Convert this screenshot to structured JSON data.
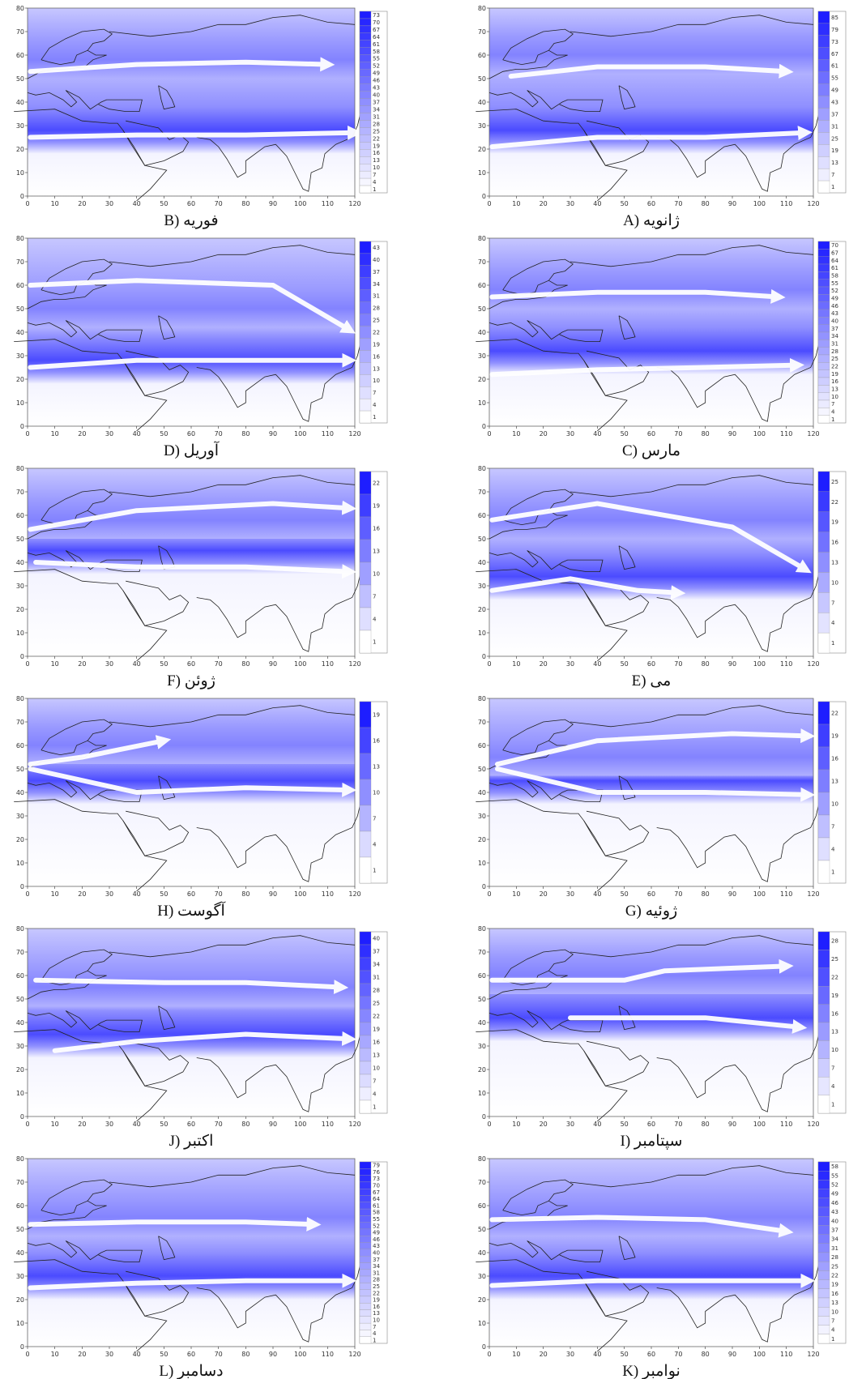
{
  "xticks": [
    0,
    10,
    20,
    30,
    40,
    50,
    60,
    70,
    80,
    90,
    100,
    110,
    120
  ],
  "yticks": [
    0,
    10,
    20,
    30,
    40,
    50,
    60,
    70,
    80
  ],
  "panels": [
    {
      "caption": "A) ژانویه",
      "levels": [
        85,
        79,
        73,
        67,
        61,
        55,
        49,
        43,
        37,
        31,
        25,
        19,
        13,
        7,
        1
      ]
    },
    {
      "caption": "B) فوریه",
      "levels": [
        73,
        70,
        67,
        64,
        61,
        58,
        55,
        52,
        49,
        46,
        43,
        40,
        37,
        34,
        31,
        28,
        25,
        22,
        19,
        16,
        13,
        10,
        7,
        4,
        1
      ]
    },
    {
      "caption": "C) مارس",
      "levels": [
        70,
        67,
        64,
        61,
        58,
        55,
        52,
        49,
        46,
        43,
        40,
        37,
        34,
        31,
        28,
        25,
        22,
        19,
        16,
        13,
        10,
        7,
        4,
        1
      ]
    },
    {
      "caption": "D) آوریل",
      "levels": [
        43,
        40,
        37,
        34,
        31,
        28,
        25,
        22,
        19,
        16,
        13,
        10,
        7,
        4,
        1
      ]
    },
    {
      "caption": "E) می",
      "levels": [
        25,
        22,
        19,
        16,
        13,
        10,
        7,
        4,
        1
      ]
    },
    {
      "caption": "F) ژوئن",
      "levels": [
        22,
        19,
        16,
        13,
        10,
        7,
        4,
        1
      ]
    },
    {
      "caption": "G) ژوئیه",
      "levels": [
        22,
        19,
        16,
        13,
        10,
        7,
        4,
        1
      ]
    },
    {
      "caption": "H) آگوست",
      "levels": [
        19,
        16,
        13,
        10,
        7,
        4,
        1
      ]
    },
    {
      "caption": "I) سپتامبر",
      "levels": [
        28,
        25,
        22,
        19,
        16,
        13,
        10,
        7,
        4,
        1
      ]
    },
    {
      "caption": "J) اکتبر",
      "levels": [
        40,
        37,
        34,
        31,
        28,
        25,
        22,
        19,
        16,
        13,
        10,
        7,
        4,
        1
      ]
    },
    {
      "caption": "K) نوامبر",
      "levels": [
        58,
        55,
        52,
        49,
        46,
        43,
        40,
        37,
        34,
        31,
        28,
        25,
        22,
        19,
        16,
        13,
        10,
        7,
        4,
        1
      ]
    },
    {
      "caption": "L) دسامبر",
      "levels": [
        79,
        76,
        73,
        70,
        67,
        64,
        61,
        58,
        55,
        52,
        49,
        46,
        43,
        40,
        37,
        34,
        31,
        28,
        25,
        22,
        19,
        16,
        13,
        10,
        7,
        4,
        1
      ]
    }
  ]
}
